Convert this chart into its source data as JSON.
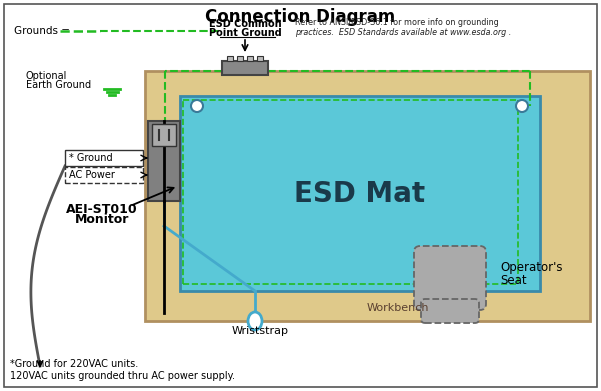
{
  "title": "Connection Diagram",
  "title_fontsize": 12,
  "bg_color": "#ffffff",
  "workbench_color": "#dfc98a",
  "workbench_edge": "#b09060",
  "mat_color": "#5bc8d8",
  "mat_edge": "#3a8aaa",
  "mat_text": "ESD Mat",
  "mat_text_fontsize": 20,
  "workbench_label": "Workbench",
  "esd_label_line1": "ESD Common",
  "esd_label_line2": "Point Ground",
  "grounds_label": "Grounds =",
  "ground_color": "#22bb22",
  "optional_earth_label1": "Optional",
  "optional_earth_label2": "Earth Ground",
  "ground_box_label1": "* Ground",
  "ground_box_label2": "AC Power",
  "monitor_label1": "AEI-ST010",
  "monitor_label2": "Monitor",
  "wriststrap_label": "Wriststrap",
  "seat_label1": "Operator's",
  "seat_label2": "Seat",
  "ref_text1": "Refer to ANSI/ESD-S6.1 for more info on grounding",
  "ref_text2": "practices.  ESD Standards available at www.esda.org .",
  "footnote1": "*Ground for 220VAC units.",
  "footnote2": "120VAC units grounded thru AC power supply.",
  "monitor_color": "#808080",
  "cpg_color": "#888888",
  "wrist_cable_color": "#44aacc",
  "seat_color": "#aaaaaa",
  "seat_edge": "#666666"
}
